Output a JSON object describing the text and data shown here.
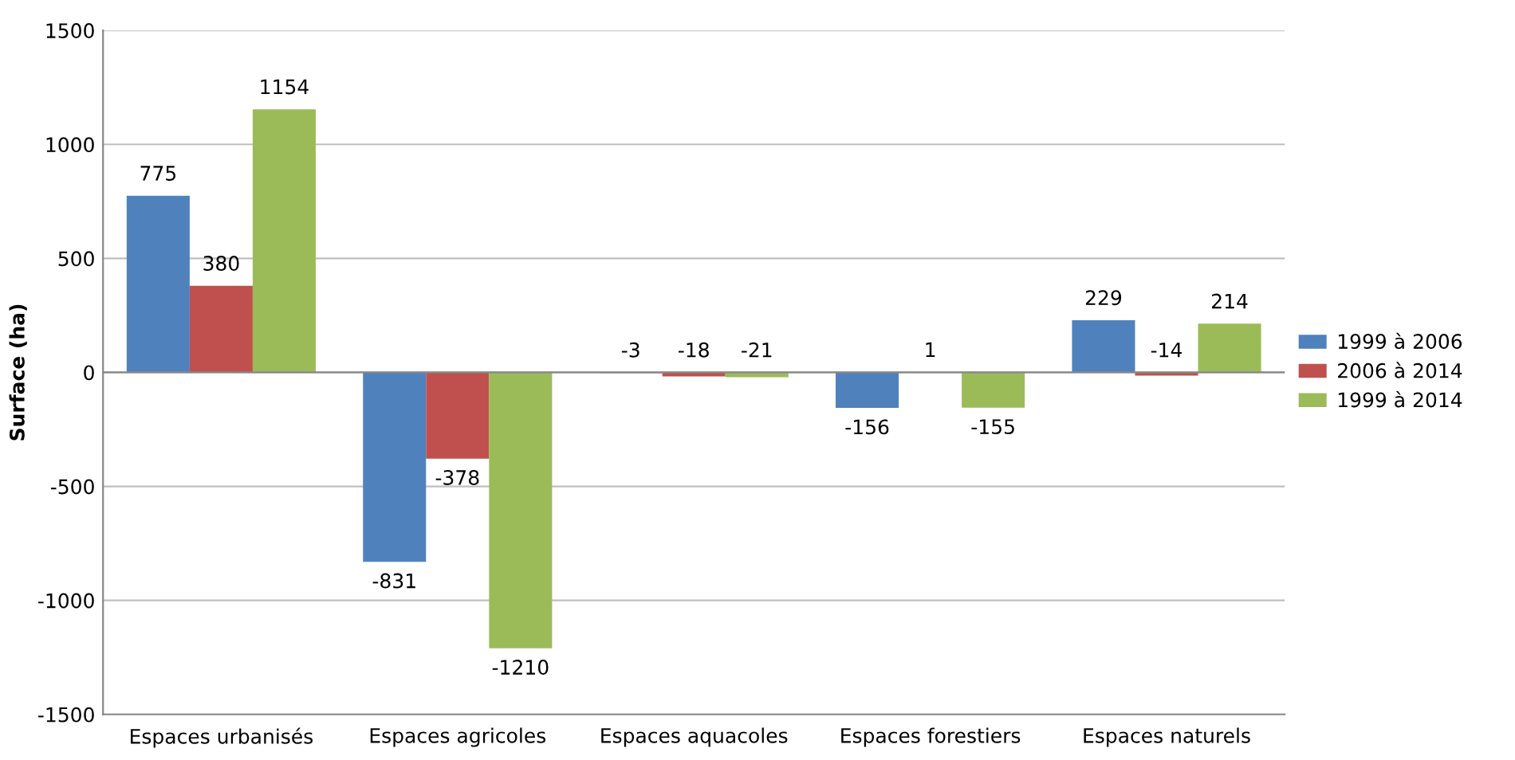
{
  "chart_data": {
    "type": "bar",
    "ylabel": "Surface (ha)",
    "categories": [
      "Espaces urbanisés",
      "Espaces agricoles",
      "Espaces aquacoles",
      "Espaces forestiers",
      "Espaces naturels"
    ],
    "series": [
      {
        "name": "1999 à 2006",
        "color": "#4f81bd",
        "values": [
          775,
          -831,
          -3,
          -156,
          229
        ]
      },
      {
        "name": "2006 à 2014",
        "color": "#c0504d",
        "values": [
          380,
          -378,
          -18,
          1,
          -14
        ]
      },
      {
        "name": "1999 à 2014",
        "color": "#9bbb59",
        "values": [
          1154,
          -1210,
          -21,
          -155,
          214
        ]
      }
    ],
    "ylim": [
      -1500,
      1500
    ],
    "yticks": [
      -1500,
      -1000,
      -500,
      0,
      500,
      1000,
      1500
    ],
    "grid": "y",
    "legend": "right",
    "data_labels": true
  }
}
